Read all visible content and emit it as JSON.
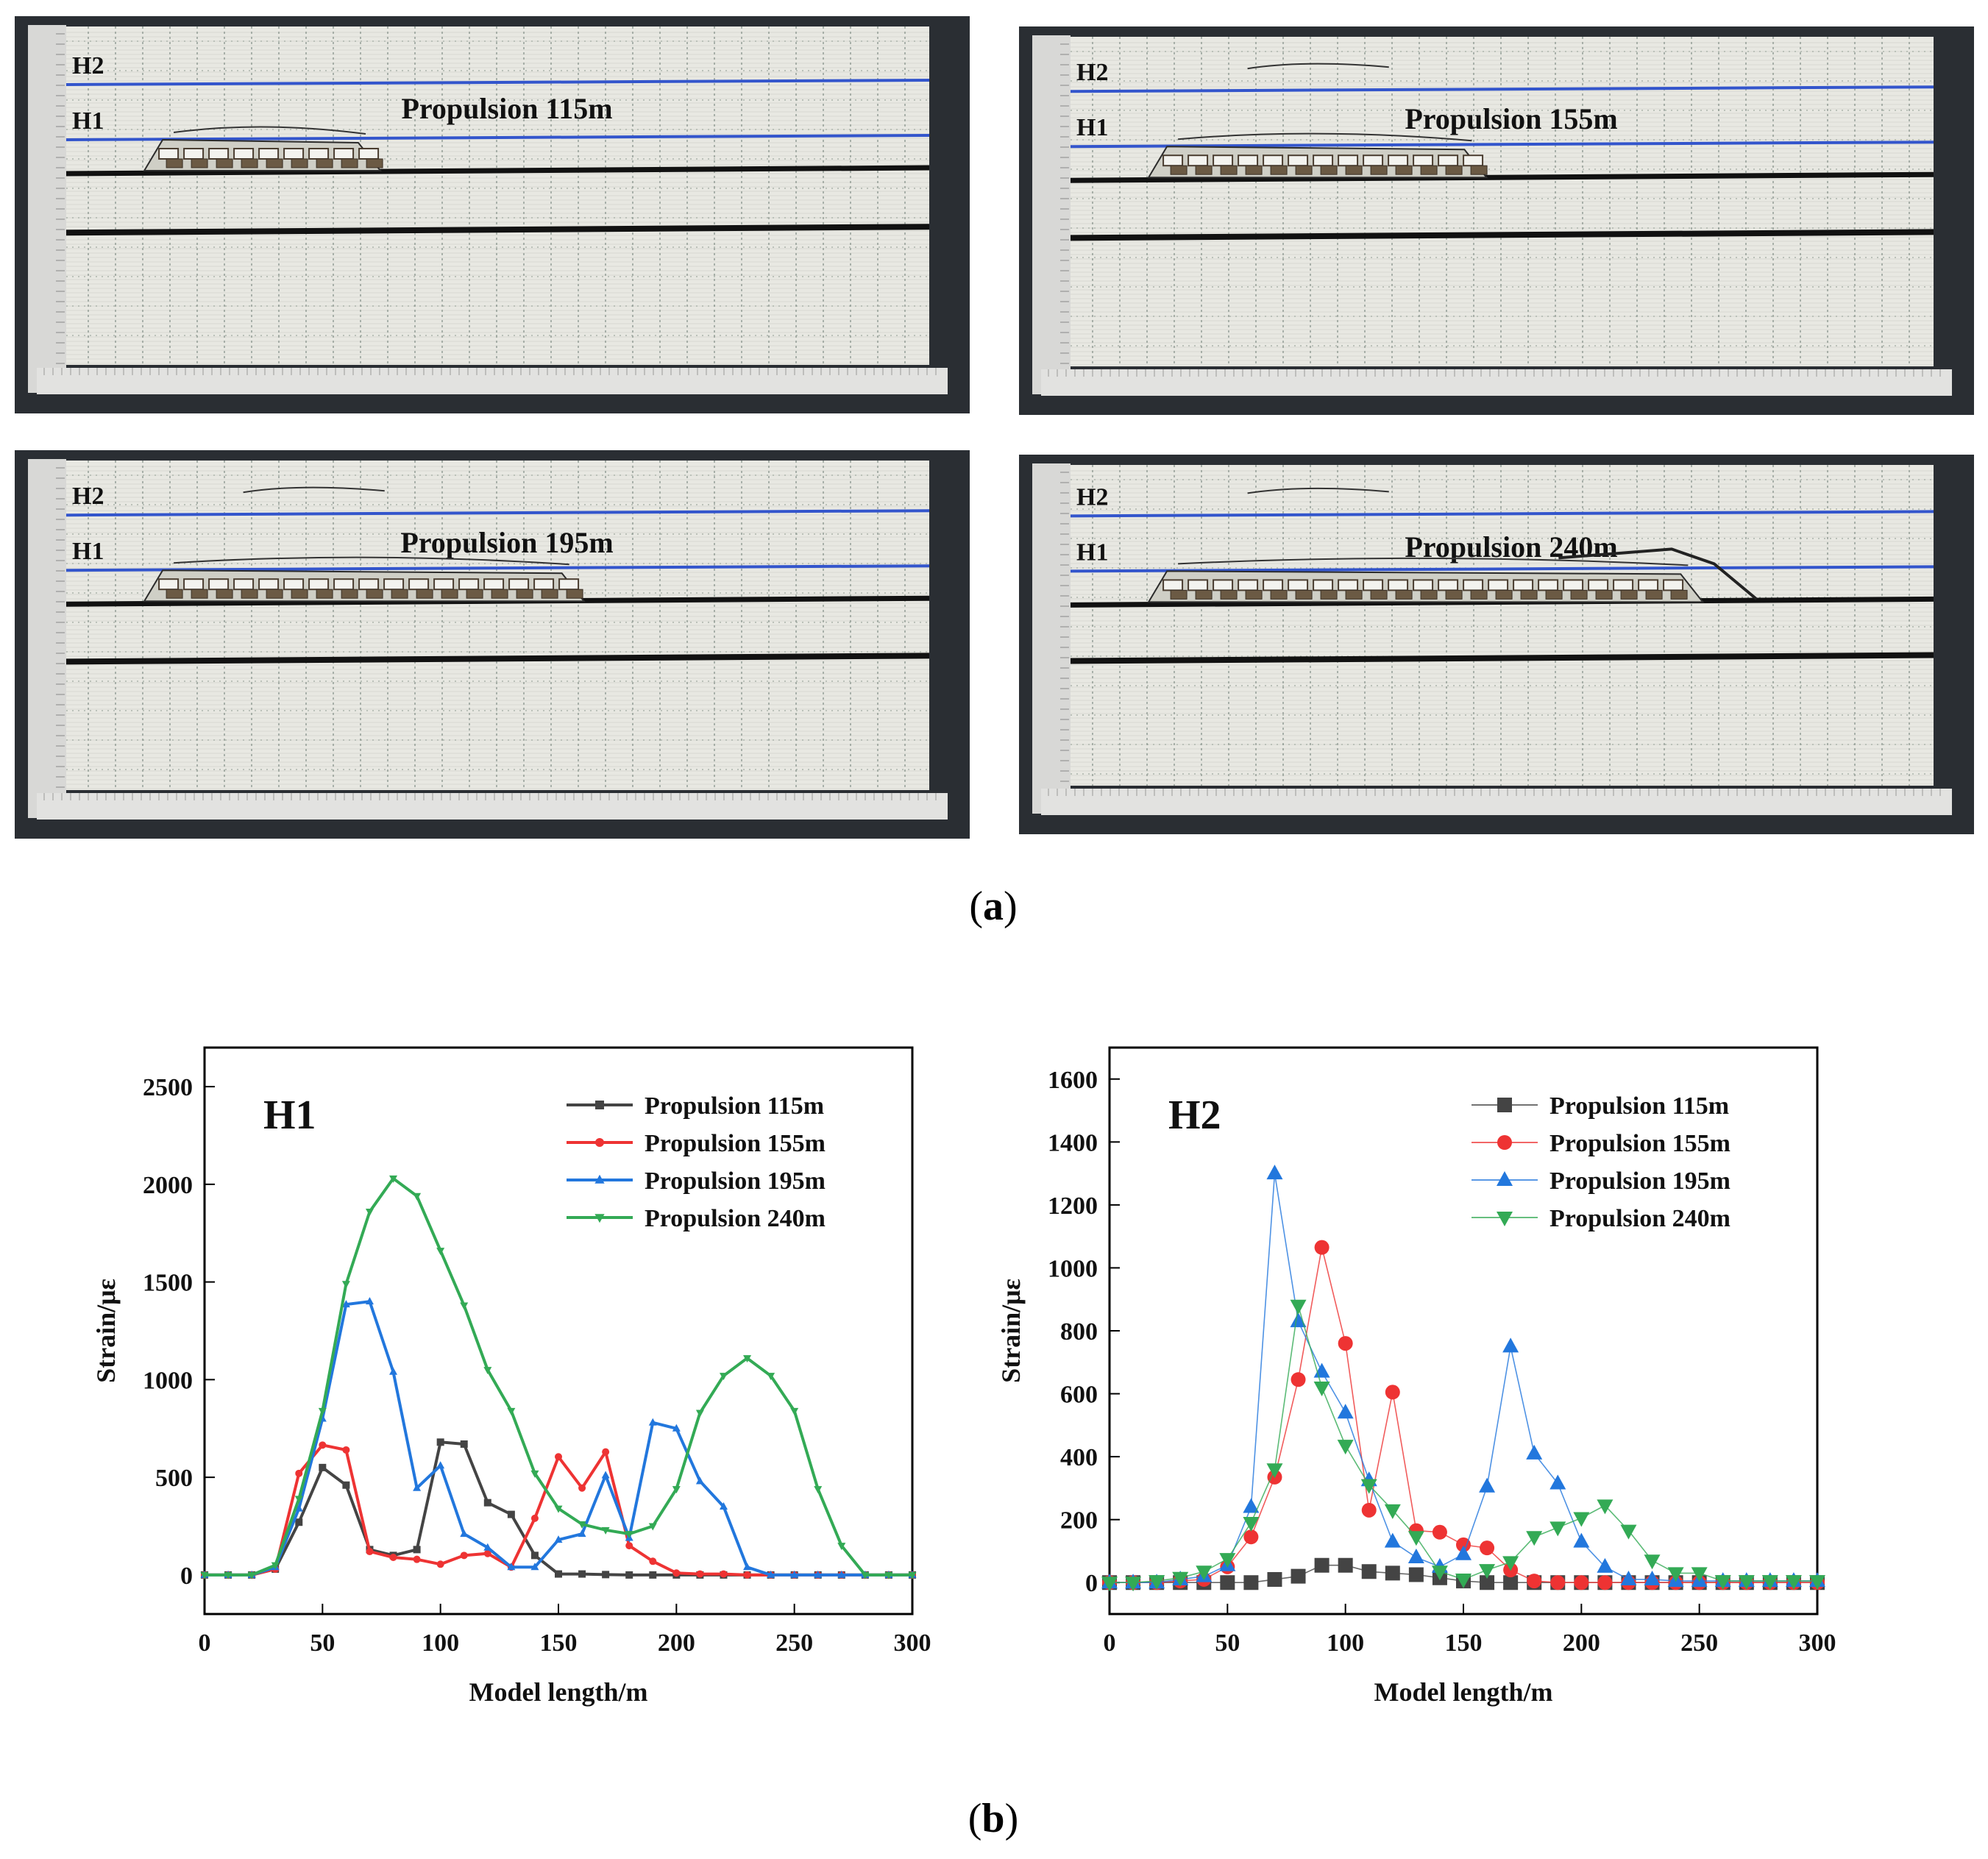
{
  "photos": [
    {
      "title": "Propulsion 115m",
      "h2": "H2",
      "h1": "H1",
      "collapse_end_m": 115
    },
    {
      "title": "Propulsion 155m",
      "h2": "H2",
      "h1": "H1",
      "collapse_end_m": 155
    },
    {
      "title": "Propulsion 195m",
      "h2": "H2",
      "h1": "H1",
      "collapse_end_m": 195
    },
    {
      "title": "Propulsion 240m",
      "h2": "H2",
      "h1": "H1",
      "collapse_end_m": 240
    }
  ],
  "figure_labels": {
    "a_open": "(",
    "a_letter": "a",
    "a_close": ")",
    "b_open": "(",
    "b_letter": "b",
    "b_close": ")"
  },
  "colors": {
    "s115": "#444444",
    "s155": "#ee3333",
    "s195": "#2277dd",
    "s240": "#33aa55",
    "h_line": "#3355cc",
    "rock": "#ffffff",
    "seam": "#111111"
  },
  "chart_data": [
    {
      "type": "line",
      "title": "H1",
      "xlabel": "Model length/m",
      "ylabel": "Strain/με",
      "xlim": [
        0,
        300
      ],
      "ylim": [
        -200,
        2700
      ],
      "xticks": [
        0,
        50,
        100,
        150,
        200,
        250,
        300
      ],
      "yticks": [
        0,
        500,
        1000,
        1500,
        2000,
        2500
      ],
      "legend_position": "top-right",
      "x": [
        0,
        10,
        20,
        30,
        40,
        50,
        60,
        70,
        80,
        90,
        100,
        110,
        120,
        130,
        140,
        150,
        160,
        170,
        180,
        190,
        200,
        210,
        220,
        230,
        240,
        250,
        260,
        270,
        280,
        290,
        300
      ],
      "series": [
        {
          "name": "Propulsion 115m",
          "color": "#444444",
          "marker": "square",
          "values": [
            0,
            0,
            0,
            30,
            270,
            550,
            460,
            130,
            100,
            130,
            680,
            670,
            370,
            310,
            100,
            5,
            5,
            2,
            0,
            0,
            0,
            0,
            0,
            0,
            0,
            0,
            0,
            0,
            0,
            0,
            0
          ]
        },
        {
          "name": "Propulsion 155m",
          "color": "#ee3333",
          "marker": "circle",
          "values": [
            0,
            0,
            0,
            30,
            520,
            665,
            640,
            120,
            90,
            80,
            55,
            100,
            110,
            40,
            290,
            605,
            445,
            630,
            150,
            70,
            10,
            5,
            5,
            0,
            0,
            0,
            0,
            0,
            0,
            0,
            0
          ]
        },
        {
          "name": "Propulsion 195m",
          "color": "#2277dd",
          "marker": "triangle-up",
          "values": [
            0,
            0,
            0,
            40,
            340,
            800,
            1385,
            1400,
            1040,
            445,
            560,
            210,
            140,
            40,
            40,
            180,
            210,
            510,
            190,
            780,
            750,
            480,
            350,
            40,
            0,
            0,
            0,
            0,
            0,
            0,
            0
          ]
        },
        {
          "name": "Propulsion 240m",
          "color": "#33aa55",
          "marker": "triangle-down",
          "values": [
            0,
            0,
            0,
            50,
            390,
            840,
            1490,
            1860,
            2030,
            1940,
            1660,
            1380,
            1050,
            840,
            520,
            340,
            260,
            230,
            210,
            250,
            440,
            830,
            1020,
            1110,
            1020,
            840,
            440,
            150,
            0,
            0,
            0
          ]
        }
      ]
    },
    {
      "type": "scatter",
      "title": "H2",
      "xlabel": "Model length/m",
      "ylabel": "Strain/με",
      "xlim": [
        0,
        300
      ],
      "ylim": [
        -100,
        1700
      ],
      "xticks": [
        0,
        50,
        100,
        150,
        200,
        250,
        300
      ],
      "yticks": [
        0,
        200,
        400,
        600,
        800,
        1000,
        1200,
        1400,
        1600
      ],
      "legend_position": "top-right",
      "x": [
        0,
        10,
        20,
        30,
        40,
        50,
        60,
        70,
        80,
        90,
        100,
        110,
        120,
        130,
        140,
        150,
        160,
        170,
        180,
        190,
        200,
        210,
        220,
        230,
        240,
        250,
        260,
        270,
        280,
        290,
        300
      ],
      "series": [
        {
          "name": "Propulsion 115m",
          "color": "#444444",
          "marker": "square",
          "values": [
            0,
            0,
            0,
            0,
            0,
            0,
            0,
            10,
            20,
            55,
            55,
            35,
            30,
            25,
            15,
            5,
            0,
            0,
            0,
            0,
            0,
            0,
            0,
            0,
            0,
            0,
            0,
            0,
            0,
            0,
            0
          ]
        },
        {
          "name": "Propulsion 155m",
          "color": "#ee3333",
          "marker": "circle",
          "values": [
            0,
            0,
            0,
            5,
            10,
            50,
            145,
            335,
            645,
            1065,
            760,
            230,
            605,
            165,
            160,
            120,
            110,
            40,
            5,
            0,
            0,
            0,
            0,
            0,
            0,
            0,
            0,
            0,
            0,
            0,
            0
          ]
        },
        {
          "name": "Propulsion 195m",
          "color": "#2277dd",
          "marker": "triangle-up",
          "values": [
            0,
            0,
            0,
            10,
            20,
            55,
            240,
            1300,
            830,
            670,
            540,
            325,
            130,
            80,
            50,
            90,
            305,
            750,
            410,
            315,
            130,
            50,
            10,
            10,
            5,
            5,
            5,
            5,
            5,
            5,
            5
          ]
        },
        {
          "name": "Propulsion 240m",
          "color": "#33aa55",
          "marker": "triangle-down",
          "values": [
            0,
            0,
            5,
            15,
            35,
            75,
            190,
            360,
            880,
            620,
            435,
            310,
            230,
            145,
            35,
            10,
            40,
            65,
            145,
            175,
            205,
            245,
            165,
            70,
            30,
            30,
            5,
            5,
            5,
            5,
            5
          ]
        }
      ]
    }
  ]
}
